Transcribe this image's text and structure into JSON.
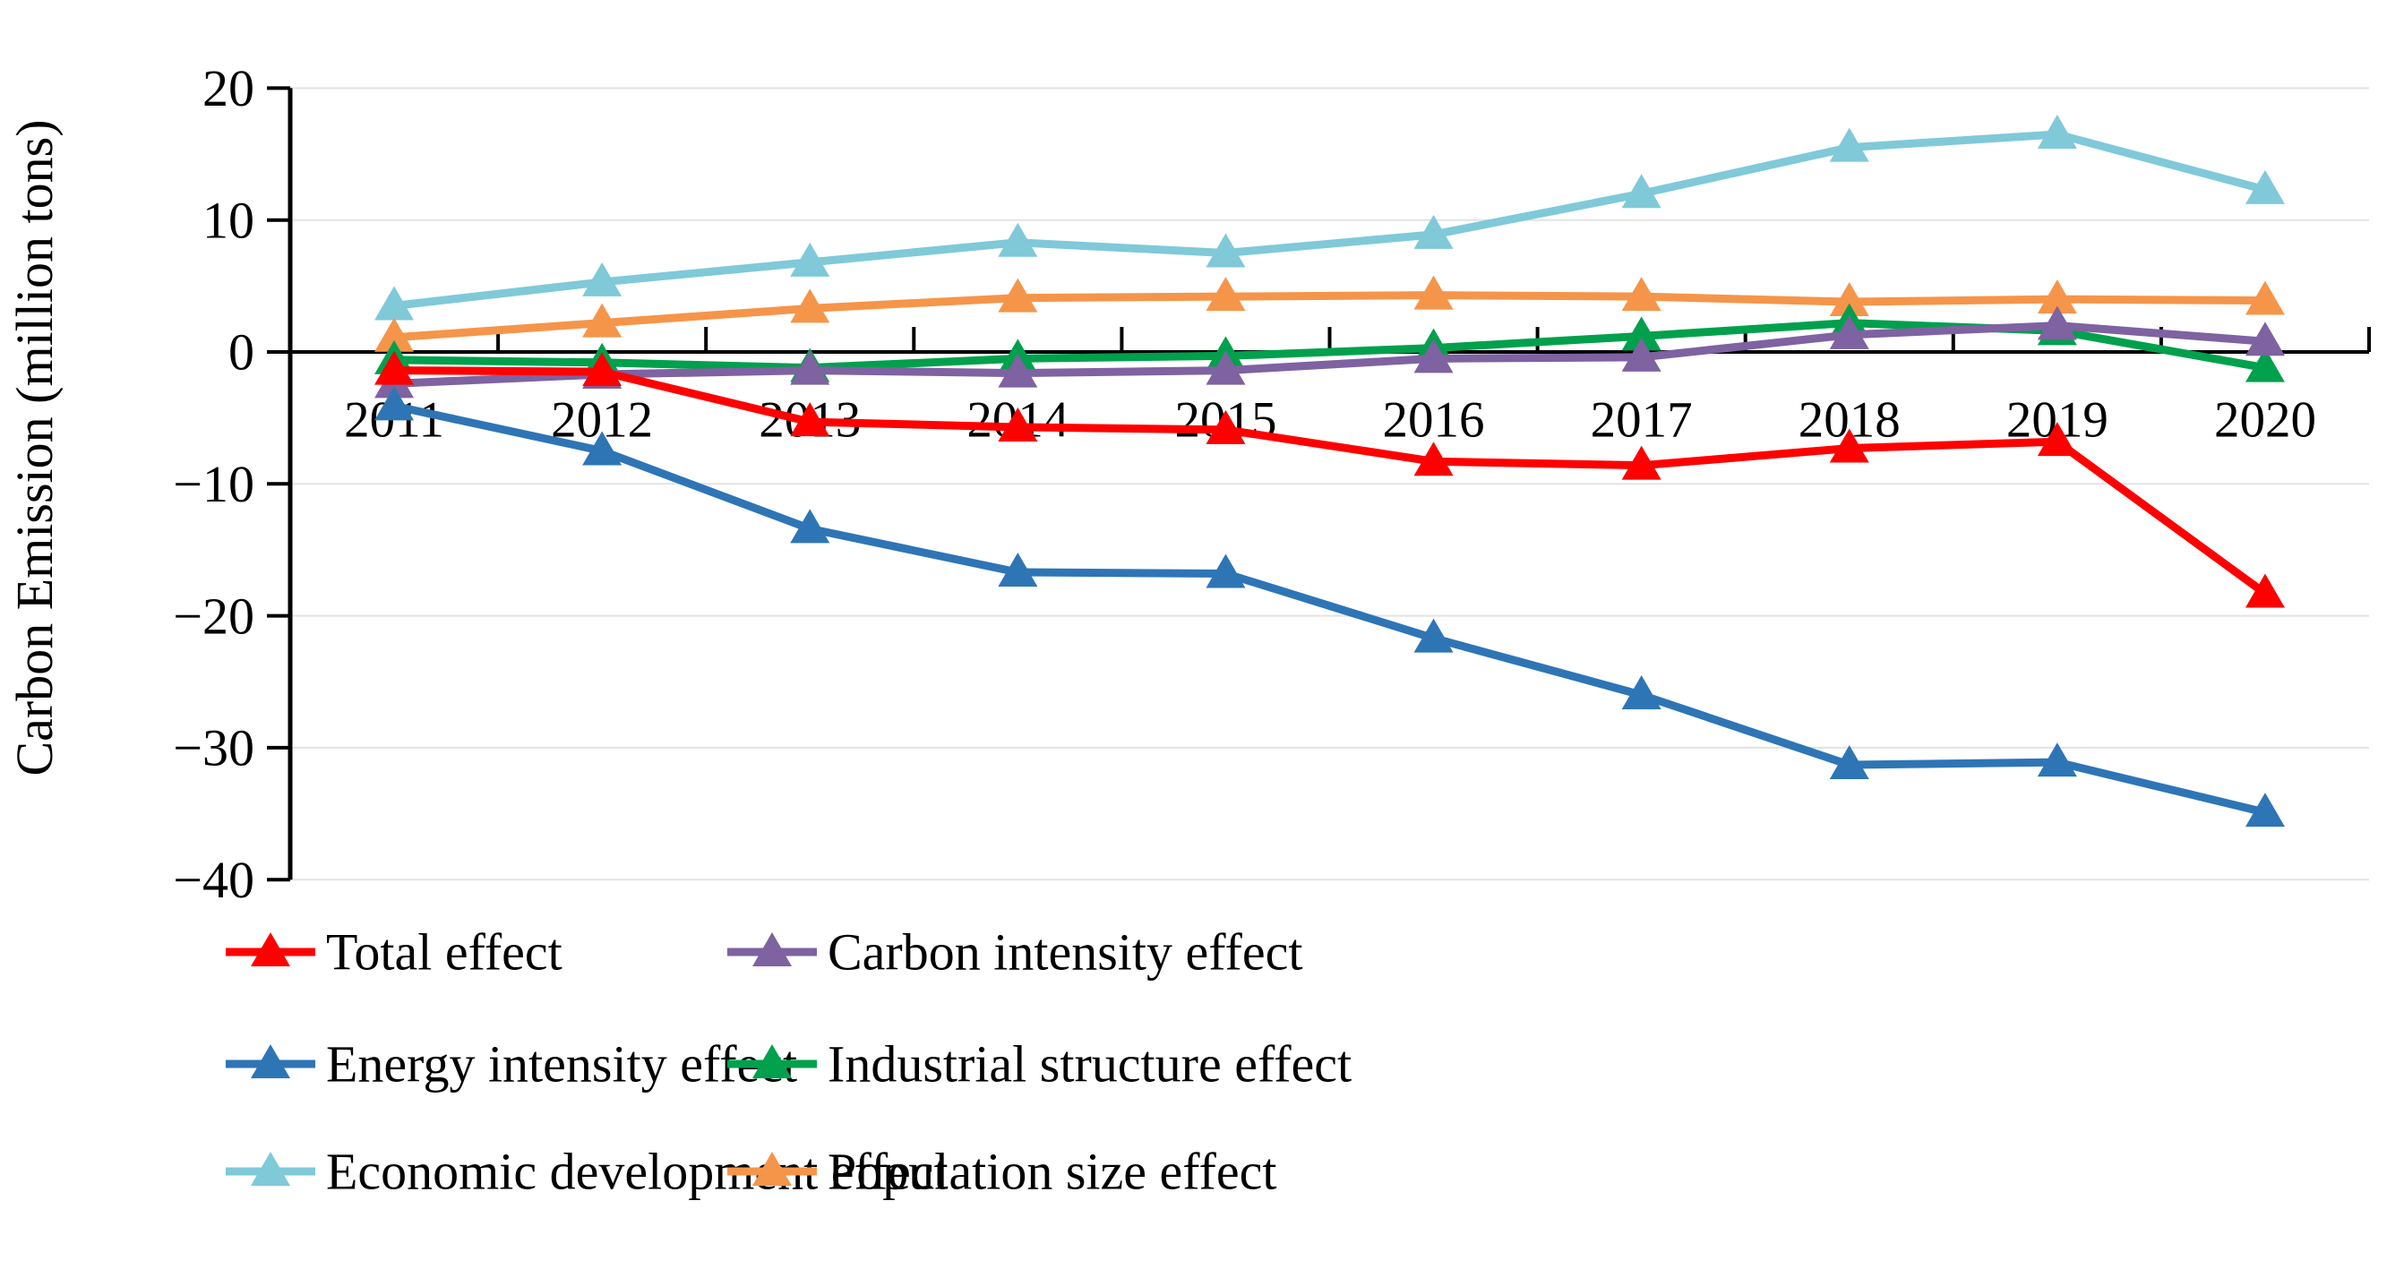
{
  "chart_data": {
    "type": "line",
    "title": "",
    "xlabel": "",
    "ylabel": "Carbon Emission (million tons)",
    "x": [
      "2011",
      "2012",
      "2013",
      "2014",
      "2015",
      "2016",
      "2017",
      "2018",
      "2019",
      "2020"
    ],
    "ylim": [
      -40,
      20
    ],
    "yticks": [
      20,
      10,
      0,
      -10,
      -20,
      -30,
      -40
    ],
    "ytick_labels": [
      "20",
      "10",
      "0",
      "−10",
      "−20",
      "−30",
      "−40"
    ],
    "grid": true,
    "gridline_color": "#e3e3e3",
    "axis_color": "#000000",
    "legend_position": "bottom-two-columns",
    "series": [
      {
        "name": "Total effect",
        "color": "#fe0000",
        "marker": "triangle-up",
        "values": [
          -1.4,
          -1.5,
          -5.3,
          -5.7,
          -5.9,
          -8.3,
          -8.6,
          -7.3,
          -6.8,
          -18.3
        ]
      },
      {
        "name": "Carbon intensity effect",
        "color": "#7e62a1",
        "marker": "triangle-up",
        "values": [
          -2.4,
          -1.7,
          -1.4,
          -1.6,
          -1.4,
          -0.5,
          -0.4,
          1.3,
          2.0,
          0.8
        ]
      },
      {
        "name": "Energy intensity effect",
        "color": "#2e75b6",
        "marker": "triangle-up",
        "values": [
          -4.1,
          -7.5,
          -13.4,
          -16.7,
          -16.8,
          -21.7,
          -26.0,
          -31.3,
          -31.1,
          -34.9
        ]
      },
      {
        "name": "Industrial structure effect",
        "color": "#00a04d",
        "marker": "triangle-up",
        "values": [
          -0.6,
          -0.8,
          -1.2,
          -0.5,
          -0.3,
          0.3,
          1.2,
          2.2,
          1.6,
          -1.2
        ]
      },
      {
        "name": "Economic development effect",
        "color": "#7fc9d9",
        "marker": "triangle-up",
        "values": [
          3.5,
          5.3,
          6.8,
          8.3,
          7.5,
          8.9,
          12.0,
          15.5,
          16.5,
          12.3
        ]
      },
      {
        "name": "Population size effect",
        "color": "#f5954a",
        "marker": "triangle-up",
        "values": [
          1.1,
          2.2,
          3.3,
          4.1,
          4.2,
          4.3,
          4.2,
          3.8,
          4.0,
          3.9
        ]
      }
    ],
    "legend_rows": [
      [
        0,
        1
      ],
      [
        2,
        3
      ],
      [
        4,
        5
      ]
    ],
    "draw_order": [
      4,
      5,
      3,
      1,
      0,
      2
    ]
  }
}
